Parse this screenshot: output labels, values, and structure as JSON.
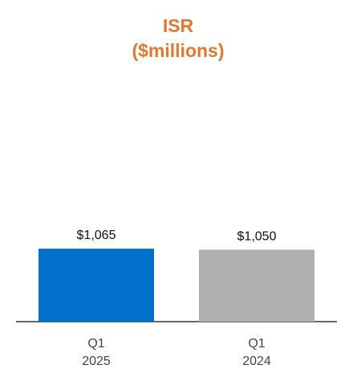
{
  "chart_data": {
    "type": "bar",
    "title": "ISR",
    "subtitle": "($millions)",
    "categories": [
      "Q1\n2025",
      "Q1\n2024"
    ],
    "values": [
      1065,
      1050
    ],
    "value_labels": [
      "$1,065",
      "$1,050"
    ],
    "colors": [
      "#0070cc",
      "#b0b0b0"
    ]
  }
}
